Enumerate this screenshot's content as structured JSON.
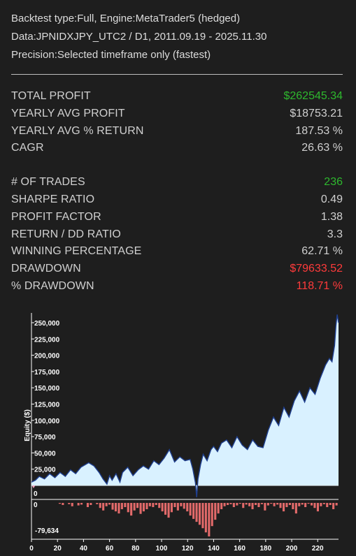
{
  "header": {
    "line1": "Backtest type:Full, Engine:MetaTrader5 (hedged)",
    "line2": "Data:JPNIDXJPY_UTC2 / D1, 2011.09.19 - 2025.11.30",
    "line3": "Precision:Selected timeframe only (fastest)"
  },
  "stats": {
    "total_profit": {
      "label": "TOTAL PROFIT",
      "value": "$262545.34"
    },
    "yearly_avg_profit": {
      "label": "YEARLY AVG PROFIT",
      "value": "$18753.21"
    },
    "yearly_avg_return": {
      "label": "YEARLY AVG % RETURN",
      "value": "187.53 %"
    },
    "cagr": {
      "label": "CAGR",
      "value": "26.63 %"
    },
    "num_trades": {
      "label": "# OF TRADES",
      "value": "236"
    },
    "sharpe": {
      "label": "SHARPE RATIO",
      "value": "0.49"
    },
    "profit_factor": {
      "label": "PROFIT FACTOR",
      "value": "1.38"
    },
    "return_dd": {
      "label": "RETURN / DD RATIO",
      "value": "3.3"
    },
    "winning_pct": {
      "label": "WINNING PERCENTAGE",
      "value": "62.71 %"
    },
    "drawdown": {
      "label": "DRAWDOWN",
      "value": "$79633.52"
    },
    "pct_drawdown": {
      "label": "% DRAWDOWN",
      "value": "118.71 %"
    }
  },
  "colors": {
    "background": "#1e1e1e",
    "positive": "#2eb82e",
    "negative": "#ff3b3b",
    "equity_fill": "#d9f1ff",
    "equity_line": "#1f3f8f",
    "drawdown_bars": "#e26a6a"
  },
  "chart_data": {
    "type": "area",
    "ylabel": "Equity ($)",
    "y_ticks": [
      "0",
      "25,000",
      "50,000",
      "75,000",
      "100,000",
      "125,000",
      "150,000",
      "175,000",
      "200,000",
      "225,000",
      "250,000"
    ],
    "x_ticks": [
      "0",
      "20",
      "40",
      "60",
      "80",
      "100",
      "120",
      "140",
      "160",
      "180",
      "200",
      "220"
    ],
    "xlim": [
      0,
      236
    ],
    "ylim": [
      0,
      265000
    ],
    "equity": {
      "x": [
        0,
        3,
        6,
        10,
        14,
        18,
        22,
        26,
        30,
        34,
        38,
        44,
        48,
        52,
        55,
        58,
        60,
        62,
        65,
        68,
        70,
        74,
        78,
        82,
        86,
        90,
        94,
        98,
        102,
        106,
        110,
        114,
        118,
        122,
        124,
        126,
        127,
        128,
        130,
        132,
        135,
        138,
        140,
        143,
        146,
        150,
        154,
        158,
        162,
        166,
        170,
        174,
        178,
        182,
        186,
        190,
        194,
        198,
        202,
        206,
        210,
        214,
        218,
        222,
        226,
        229,
        231,
        233,
        234,
        235,
        236
      ],
      "y": [
        5000,
        8000,
        14000,
        10000,
        18000,
        12000,
        20000,
        14000,
        24000,
        18000,
        28000,
        35000,
        30000,
        20000,
        10000,
        2000,
        15000,
        8000,
        18000,
        5000,
        20000,
        28000,
        15000,
        24000,
        30000,
        25000,
        38000,
        32000,
        42000,
        55000,
        36000,
        44000,
        38000,
        40000,
        25000,
        4000,
        -18000,
        10000,
        32000,
        48000,
        38000,
        55000,
        60000,
        52000,
        65000,
        70000,
        58000,
        75000,
        62000,
        55000,
        70000,
        60000,
        58000,
        85000,
        105000,
        92000,
        120000,
        105000,
        130000,
        145000,
        128000,
        150000,
        140000,
        165000,
        185000,
        195000,
        190000,
        215000,
        245000,
        262545,
        250000
      ]
    },
    "drawdown": {
      "label_min": "-79,634",
      "label_zero": "0",
      "min": -79634,
      "bars": [
        0,
        0,
        -2000,
        -5000,
        0,
        -3000,
        -8000,
        0,
        -6000,
        -4000,
        0,
        -10000,
        -5000,
        0,
        -3000,
        -12000,
        -18000,
        -8000,
        -4000,
        -16000,
        -20000,
        -25000,
        -15000,
        -10000,
        -22000,
        -30000,
        -18000,
        -12000,
        -26000,
        -20000,
        -15000,
        -8000,
        -10000,
        -5000,
        -12000,
        -20000,
        -28000,
        -35000,
        -22000,
        -10000,
        -18000,
        -8000,
        -14000,
        -20000,
        -30000,
        -38000,
        -45000,
        -52000,
        -60000,
        -70000,
        -79634,
        -55000,
        -40000,
        -25000,
        -15000,
        -8000,
        -5000,
        -3000,
        -10000,
        -6000,
        -2000,
        -12000,
        -4000,
        -8000,
        -15000,
        -5000,
        -10000,
        -3000,
        -18000,
        -6000,
        -2000,
        -8000,
        -4000,
        -12000,
        -20000,
        -10000,
        -5000,
        -15000,
        -25000,
        -8000,
        -4000,
        -10000,
        -2000,
        -6000,
        -12000,
        -20000,
        -8000,
        -3000,
        -10000,
        -5000,
        -15000,
        -6000
      ]
    }
  }
}
